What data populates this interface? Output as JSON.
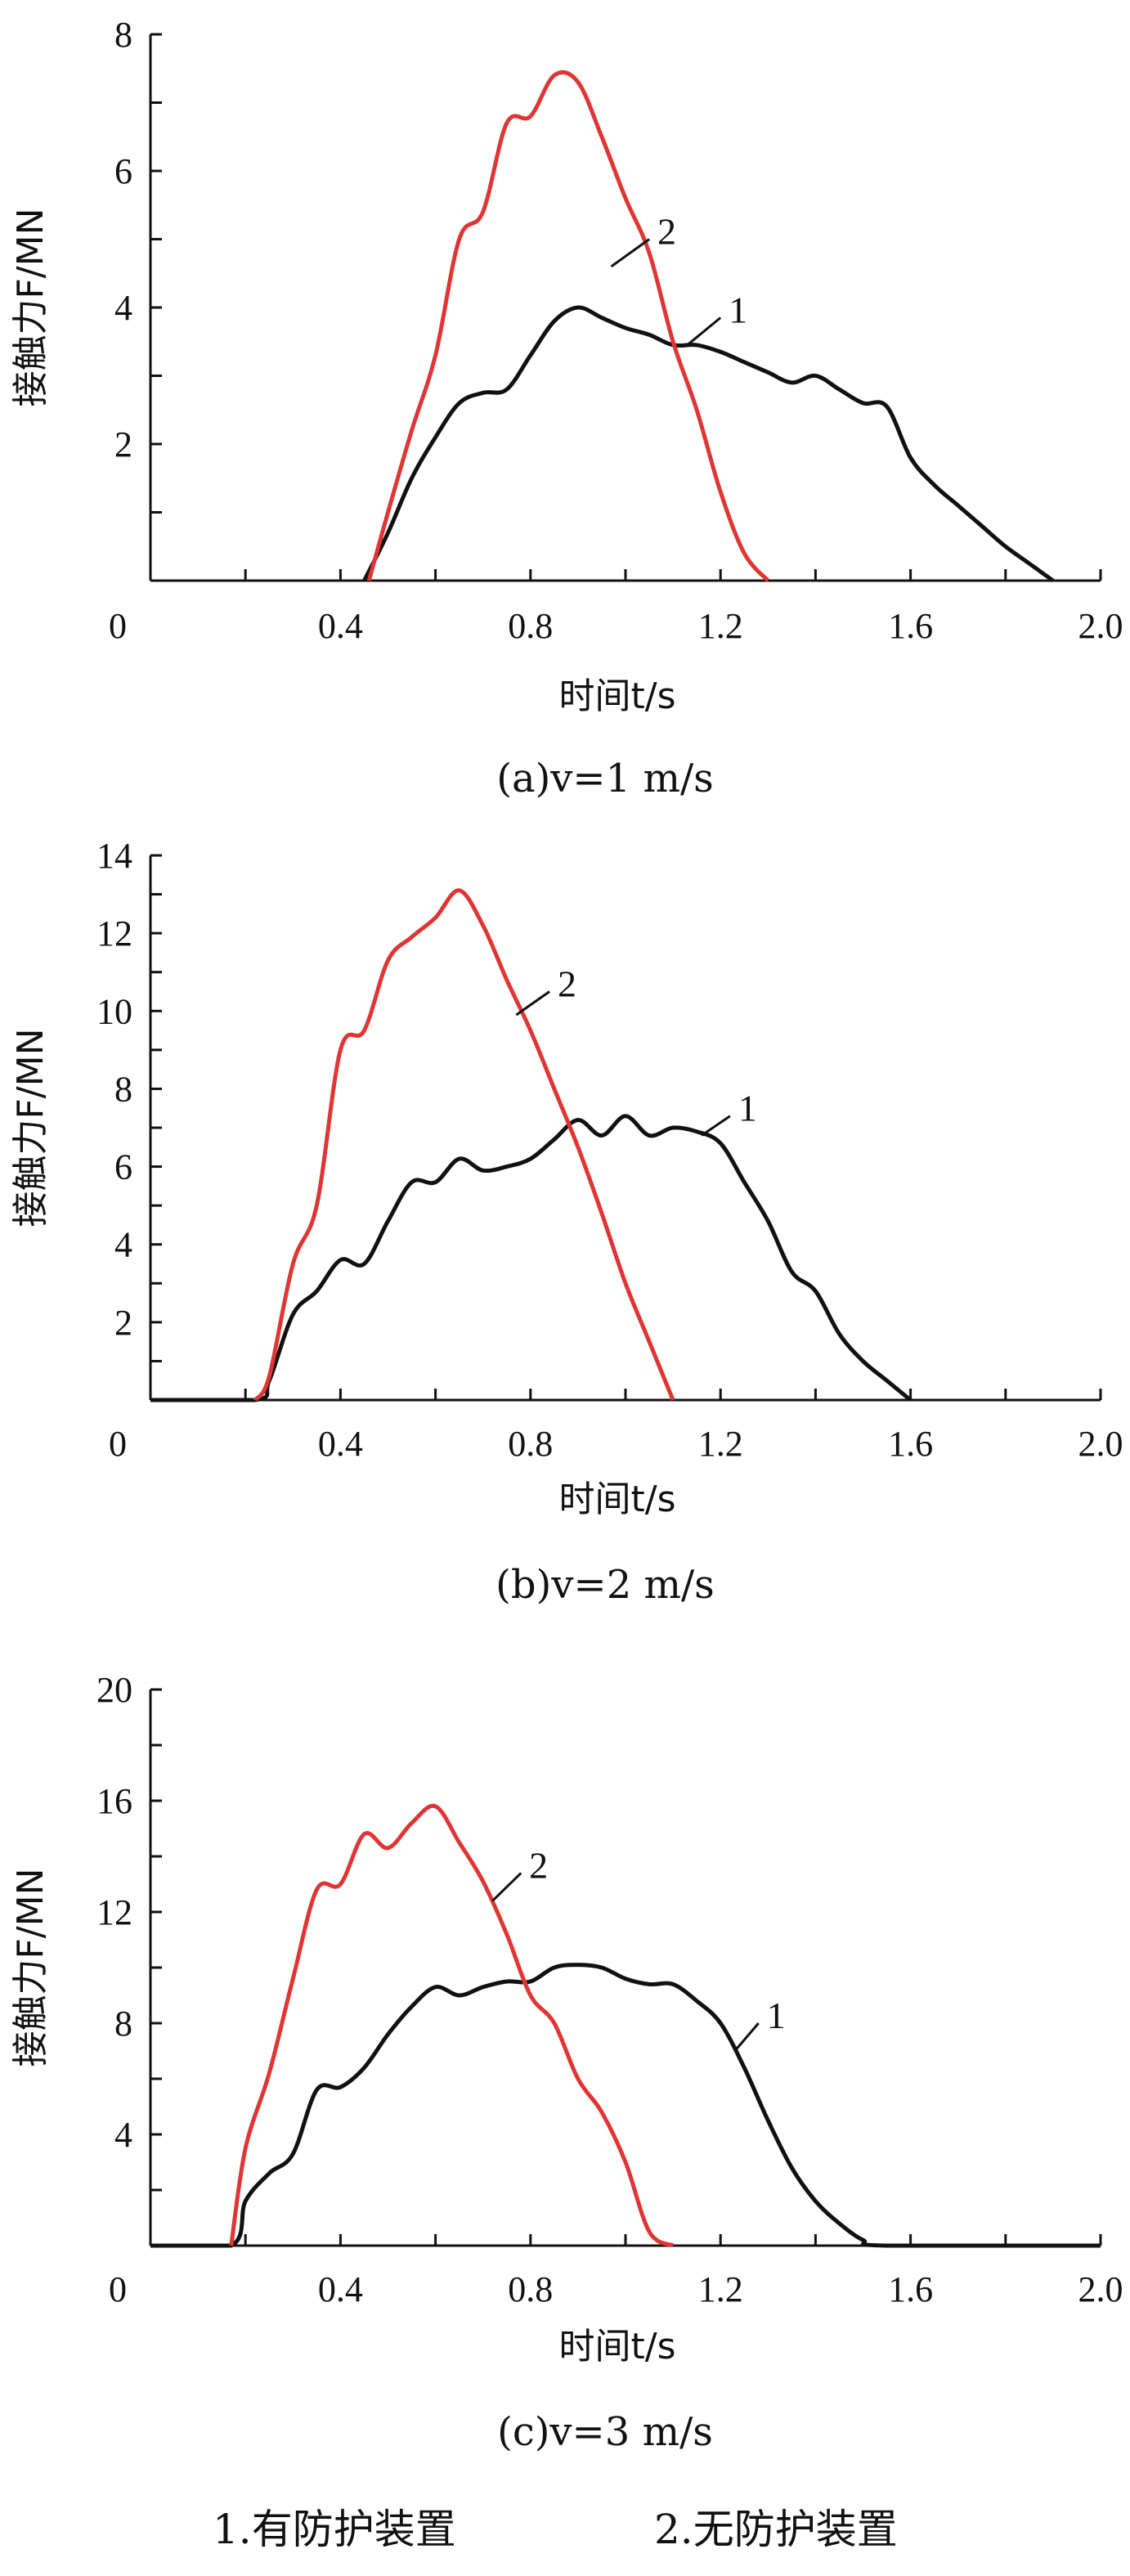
{
  "chart_data": [
    {
      "type": "line",
      "caption": "(a)v=1 m/s",
      "xlabel": "时间t/s",
      "ylabel": "接触力F/MN",
      "xlim": [
        0,
        2.0
      ],
      "ylim": [
        0,
        8
      ],
      "xticks": [
        "0",
        "0.4",
        "0.8",
        "1.2",
        "1.6",
        "2.0"
      ],
      "yticks": [
        "2",
        "4",
        "6",
        "8"
      ],
      "series": [
        {
          "name": "1",
          "color": "#111111",
          "points": [
            [
              0.45,
              0
            ],
            [
              0.5,
              0.7
            ],
            [
              0.55,
              1.5
            ],
            [
              0.6,
              2.1
            ],
            [
              0.65,
              2.6
            ],
            [
              0.7,
              2.75
            ],
            [
              0.75,
              2.8
            ],
            [
              0.8,
              3.3
            ],
            [
              0.85,
              3.8
            ],
            [
              0.9,
              4.0
            ],
            [
              0.95,
              3.85
            ],
            [
              1.0,
              3.7
            ],
            [
              1.05,
              3.6
            ],
            [
              1.1,
              3.45
            ],
            [
              1.15,
              3.45
            ],
            [
              1.2,
              3.35
            ],
            [
              1.25,
              3.2
            ],
            [
              1.3,
              3.05
            ],
            [
              1.35,
              2.9
            ],
            [
              1.4,
              3.0
            ],
            [
              1.45,
              2.8
            ],
            [
              1.5,
              2.6
            ],
            [
              1.55,
              2.55
            ],
            [
              1.6,
              1.8
            ],
            [
              1.65,
              1.4
            ],
            [
              1.7,
              1.1
            ],
            [
              1.75,
              0.8
            ],
            [
              1.8,
              0.5
            ],
            [
              1.85,
              0.25
            ],
            [
              1.9,
              0
            ]
          ]
        },
        {
          "name": "2",
          "color": "#e03535",
          "points": [
            [
              0.46,
              0
            ],
            [
              0.5,
              1.0
            ],
            [
              0.55,
              2.2
            ],
            [
              0.6,
              3.3
            ],
            [
              0.65,
              5.0
            ],
            [
              0.7,
              5.4
            ],
            [
              0.75,
              6.7
            ],
            [
              0.8,
              6.8
            ],
            [
              0.85,
              7.4
            ],
            [
              0.9,
              7.3
            ],
            [
              0.95,
              6.5
            ],
            [
              1.0,
              5.6
            ],
            [
              1.05,
              4.8
            ],
            [
              1.1,
              3.5
            ],
            [
              1.15,
              2.5
            ],
            [
              1.2,
              1.3
            ],
            [
              1.25,
              0.4
            ],
            [
              1.3,
              0
            ]
          ]
        }
      ]
    },
    {
      "type": "line",
      "caption": "(b)v=2 m/s",
      "xlabel": "时间t/s",
      "ylabel": "接触力F/MN",
      "xlim": [
        0,
        2.0
      ],
      "ylim": [
        0,
        14
      ],
      "xticks": [
        "0",
        "0.4",
        "0.8",
        "1.2",
        "1.6",
        "2.0"
      ],
      "yticks": [
        "2",
        "4",
        "6",
        "8",
        "10",
        "12",
        "14"
      ],
      "series": [
        {
          "name": "1",
          "color": "#111111",
          "points": [
            [
              0.0,
              0
            ],
            [
              0.22,
              0
            ],
            [
              0.25,
              0.5
            ],
            [
              0.3,
              2.2
            ],
            [
              0.35,
              2.8
            ],
            [
              0.4,
              3.6
            ],
            [
              0.45,
              3.5
            ],
            [
              0.5,
              4.6
            ],
            [
              0.55,
              5.6
            ],
            [
              0.6,
              5.6
            ],
            [
              0.65,
              6.2
            ],
            [
              0.7,
              5.9
            ],
            [
              0.75,
              6.0
            ],
            [
              0.8,
              6.2
            ],
            [
              0.85,
              6.7
            ],
            [
              0.9,
              7.2
            ],
            [
              0.95,
              6.8
            ],
            [
              1.0,
              7.3
            ],
            [
              1.05,
              6.8
            ],
            [
              1.1,
              7.0
            ],
            [
              1.15,
              6.9
            ],
            [
              1.2,
              6.6
            ],
            [
              1.25,
              5.6
            ],
            [
              1.3,
              4.6
            ],
            [
              1.35,
              3.3
            ],
            [
              1.4,
              2.8
            ],
            [
              1.45,
              1.7
            ],
            [
              1.5,
              1.0
            ],
            [
              1.55,
              0.5
            ],
            [
              1.6,
              0
            ]
          ]
        },
        {
          "name": "2",
          "color": "#e03535",
          "points": [
            [
              0.22,
              0
            ],
            [
              0.25,
              0.6
            ],
            [
              0.3,
              3.5
            ],
            [
              0.35,
              5.0
            ],
            [
              0.4,
              9.0
            ],
            [
              0.45,
              9.5
            ],
            [
              0.5,
              11.3
            ],
            [
              0.55,
              11.9
            ],
            [
              0.6,
              12.4
            ],
            [
              0.65,
              13.1
            ],
            [
              0.7,
              12.2
            ],
            [
              0.75,
              10.8
            ],
            [
              0.8,
              9.5
            ],
            [
              0.85,
              8.0
            ],
            [
              0.9,
              6.5
            ],
            [
              0.95,
              4.8
            ],
            [
              1.0,
              3.0
            ],
            [
              1.05,
              1.5
            ],
            [
              1.1,
              0
            ]
          ]
        }
      ]
    },
    {
      "type": "line",
      "caption": "(c)v=3 m/s",
      "xlabel": "时间t/s",
      "ylabel": "接触力F/MN",
      "xlim": [
        0,
        2.0
      ],
      "ylim": [
        0,
        20
      ],
      "xticks": [
        "0",
        "0.4",
        "0.8",
        "1.2",
        "1.6",
        "2.0"
      ],
      "yticks": [
        "4",
        "8",
        "12",
        "16",
        "20"
      ],
      "series": [
        {
          "name": "1",
          "color": "#111111",
          "points": [
            [
              0.0,
              0
            ],
            [
              0.17,
              0
            ],
            [
              0.2,
              1.6
            ],
            [
              0.25,
              2.6
            ],
            [
              0.3,
              3.3
            ],
            [
              0.35,
              5.6
            ],
            [
              0.4,
              5.7
            ],
            [
              0.45,
              6.4
            ],
            [
              0.5,
              7.6
            ],
            [
              0.55,
              8.6
            ],
            [
              0.6,
              9.3
            ],
            [
              0.65,
              9.0
            ],
            [
              0.7,
              9.3
            ],
            [
              0.75,
              9.5
            ],
            [
              0.8,
              9.5
            ],
            [
              0.85,
              10.0
            ],
            [
              0.9,
              10.1
            ],
            [
              0.95,
              10.0
            ],
            [
              1.0,
              9.6
            ],
            [
              1.05,
              9.4
            ],
            [
              1.1,
              9.4
            ],
            [
              1.15,
              8.8
            ],
            [
              1.2,
              8.0
            ],
            [
              1.25,
              6.4
            ],
            [
              1.3,
              4.5
            ],
            [
              1.35,
              2.8
            ],
            [
              1.4,
              1.6
            ],
            [
              1.45,
              0.8
            ],
            [
              1.5,
              0.2
            ],
            [
              1.55,
              0
            ],
            [
              2.0,
              0
            ]
          ]
        },
        {
          "name": "2",
          "color": "#e03535",
          "points": [
            [
              0.17,
              0
            ],
            [
              0.2,
              3.5
            ],
            [
              0.25,
              6.2
            ],
            [
              0.3,
              9.6
            ],
            [
              0.35,
              12.8
            ],
            [
              0.4,
              13.0
            ],
            [
              0.45,
              14.8
            ],
            [
              0.5,
              14.3
            ],
            [
              0.55,
              15.2
            ],
            [
              0.6,
              15.8
            ],
            [
              0.65,
              14.5
            ],
            [
              0.7,
              13.1
            ],
            [
              0.75,
              11.2
            ],
            [
              0.8,
              9.0
            ],
            [
              0.85,
              8.0
            ],
            [
              0.9,
              6.0
            ],
            [
              0.95,
              4.8
            ],
            [
              1.0,
              3.0
            ],
            [
              1.05,
              0.5
            ],
            [
              1.1,
              0
            ]
          ]
        }
      ]
    }
  ],
  "legend": [
    "1.有防护装置",
    "2.无防护装置"
  ]
}
